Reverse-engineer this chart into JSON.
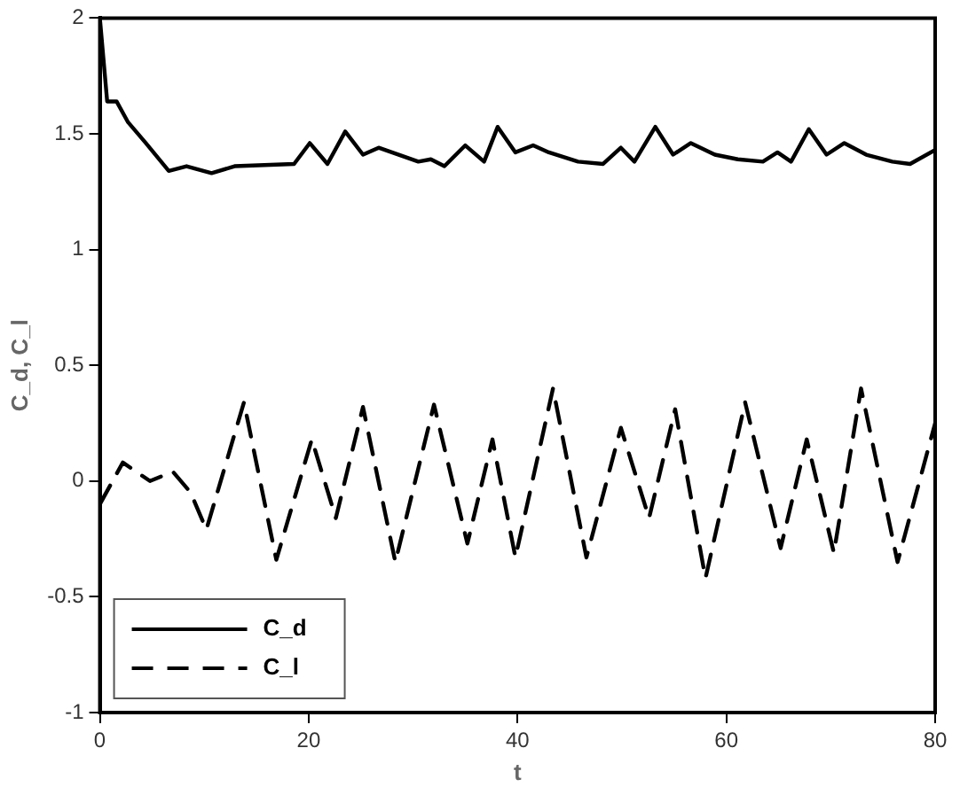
{
  "chart_data": {
    "type": "line",
    "xlabel": "t",
    "ylabel": "C_d, C_l",
    "xlim": [
      0,
      80
    ],
    "xticks": [
      0,
      20,
      40,
      60,
      80
    ],
    "ylim": [
      -1,
      2
    ],
    "yticks": [
      -1,
      -0.5,
      0,
      0.5,
      1,
      1.5,
      2
    ],
    "grid": false,
    "legend": "bottom left",
    "marker": "none",
    "series": [
      {
        "name": "C_d",
        "color": "#000000",
        "line_style": "solid",
        "x": [
          0,
          0.7,
          1.6,
          2.7,
          4.4,
          6.6,
          8.3,
          10.7,
          12.9,
          18.6,
          20.1,
          21.8,
          23.5,
          25.2,
          26.7,
          30.5,
          31.7,
          33,
          35,
          36.8,
          38.1,
          39.8,
          41.5,
          43,
          45.8,
          48.2,
          49.9,
          51.2,
          53.2,
          54.9,
          56.6,
          58.9,
          61.1,
          63.5,
          64.9,
          66.2,
          67.9,
          69.6,
          71.3,
          73.4,
          75.9,
          77.6,
          80
        ],
        "values": [
          2.0,
          1.64,
          1.64,
          1.55,
          1.46,
          1.34,
          1.36,
          1.33,
          1.36,
          1.37,
          1.46,
          1.37,
          1.51,
          1.41,
          1.44,
          1.38,
          1.39,
          1.36,
          1.45,
          1.38,
          1.53,
          1.42,
          1.45,
          1.42,
          1.38,
          1.37,
          1.44,
          1.38,
          1.53,
          1.41,
          1.46,
          1.41,
          1.39,
          1.38,
          1.42,
          1.38,
          1.52,
          1.41,
          1.46,
          1.41,
          1.38,
          1.37,
          1.43
        ]
      },
      {
        "name": "C_l",
        "color": "#000000",
        "line_style": "dashed",
        "x": [
          0,
          2.2,
          4.8,
          7,
          8.7,
          10.2,
          13.8,
          16.9,
          20.3,
          22.6,
          25.2,
          28.3,
          32,
          35.2,
          37.6,
          39.8,
          43.4,
          46.6,
          49.9,
          52.6,
          55.1,
          58,
          61.8,
          65.2,
          67.7,
          70.3,
          72.9,
          76.4,
          80
        ],
        "values": [
          -0.1,
          0.08,
          0.0,
          0.04,
          -0.05,
          -0.21,
          0.34,
          -0.34,
          0.18,
          -0.16,
          0.32,
          -0.35,
          0.33,
          -0.27,
          0.18,
          -0.33,
          0.4,
          -0.33,
          0.23,
          -0.16,
          0.31,
          -0.42,
          0.34,
          -0.29,
          0.18,
          -0.31,
          0.4,
          -0.35,
          0.25
        ]
      }
    ]
  }
}
